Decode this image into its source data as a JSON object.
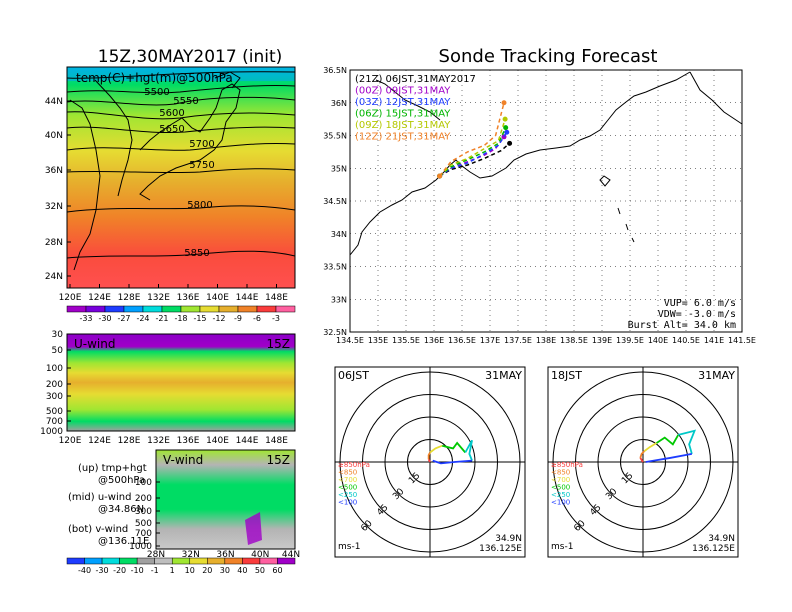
{
  "left_title": "15Z,30MAY2017 (init)",
  "right_title": "Sonde Tracking Forecast",
  "map500": {
    "label": "temp(C)+hgt(m)@500hPa",
    "lon_ticks": [
      "120E",
      "124E",
      "128E",
      "132E",
      "136E",
      "140E",
      "144E",
      "148E"
    ],
    "lat_ticks": [
      "44N",
      "40N",
      "36N",
      "32N",
      "28N",
      "24N"
    ],
    "contours": [
      "5500",
      "5550",
      "5600",
      "5650",
      "5700",
      "5750",
      "5800",
      "5850"
    ],
    "colorbar": {
      "labels": [
        "-33",
        "-30",
        "-27",
        "-24",
        "-21",
        "-18",
        "-15",
        "-12",
        "-9",
        "-6",
        "-3"
      ],
      "colors": [
        "#a000c8",
        "#7800dc",
        "#1e3cff",
        "#00a0ff",
        "#00dcdc",
        "#00dc64",
        "#a0e632",
        "#e6dc32",
        "#e6af2d",
        "#f08228",
        "#fa3c3c",
        "#ff60a0"
      ]
    }
  },
  "uwind": {
    "label": "U-wind",
    "time": "15Z",
    "p_ticks": [
      "30",
      "50",
      "100",
      "200",
      "300",
      "500",
      "700",
      "1000"
    ],
    "lon_ticks": [
      "120E",
      "124E",
      "128E",
      "132E",
      "136E",
      "140E",
      "144E",
      "148E"
    ]
  },
  "vwind": {
    "label": "V-wind",
    "time": "15Z",
    "p_ticks": [
      "100",
      "200",
      "300",
      "500",
      "700",
      "1000"
    ],
    "lat_ticks": [
      "28N",
      "32N",
      "36N",
      "40N",
      "44N"
    ],
    "colorbar": {
      "labels": [
        "-40",
        "-30",
        "-20",
        "-10",
        "-1",
        "1",
        "10",
        "20",
        "30",
        "40",
        "50",
        "60"
      ],
      "colors": [
        "#1e3cff",
        "#00a0ff",
        "#00dcdc",
        "#00dc64",
        "#a0a0a0",
        "#bebebe",
        "#a0e632",
        "#e6dc32",
        "#e6af2d",
        "#f08228",
        "#fa3c3c",
        "#ff60a0",
        "#a000c8"
      ]
    }
  },
  "notes": [
    {
      "a": "(up) tmp+hgt",
      "b": "@500hPa"
    },
    {
      "a": "(mid) u-wind",
      "b": "@34.86N"
    },
    {
      "a": "(bot) v-wind",
      "b": "@136.11E"
    }
  ],
  "track": {
    "legend": [
      {
        "text": "(21Z)  06JST,31MAY2017",
        "color": "#000000"
      },
      {
        "text": "(00Z)  09JST,31MAY",
        "color": "#a000c8"
      },
      {
        "text": "(03Z)  12JST,31MAY",
        "color": "#1e3cff"
      },
      {
        "text": "(06Z)  15JST,31MAY",
        "color": "#00b400"
      },
      {
        "text": "(09Z)  18JST,31MAY",
        "color": "#b4c800"
      },
      {
        "text": "(12Z)  21JST,31MAY",
        "color": "#f08228"
      }
    ],
    "lon_ticks": [
      "134.5E",
      "135E",
      "135.5E",
      "136E",
      "136.5E",
      "137E",
      "137.5E",
      "138E",
      "138.5E",
      "139E",
      "139.5E",
      "140E",
      "140.5E",
      "141E",
      "141.5E"
    ],
    "lat_ticks": [
      "36.5N",
      "36N",
      "35.5N",
      "35N",
      "34.5N",
      "34N",
      "33.5N",
      "33N",
      "32.5N"
    ],
    "vup": "VUP=  6.0  m/s",
    "vdw": "VDW=  -3.0  m/s",
    "burst": "Burst Alt=  34.0  km"
  },
  "hodo_left": {
    "time": "06JST",
    "date": "31MAY",
    "lat": "34.9N",
    "lon": "136.125E",
    "unit": "ms-1",
    "rings": [
      "15",
      "30",
      "45",
      "60"
    ],
    "levels": [
      {
        "t": "≥850hPa",
        "c": "#fa3c3c"
      },
      {
        "t": "<850",
        "c": "#f08228"
      },
      {
        "t": "<700",
        "c": "#e6dc32"
      },
      {
        "t": "<500",
        "c": "#00c800"
      },
      {
        "t": "<250",
        "c": "#00c8c8"
      },
      {
        "t": "<100",
        "c": "#1e3cff"
      }
    ]
  },
  "hodo_right": {
    "time": "18JST",
    "date": "31MAY",
    "lat": "34.9N",
    "lon": "136.125E",
    "unit": "ms-1",
    "rings": [
      "15",
      "30",
      "45",
      "60"
    ],
    "levels": [
      {
        "t": "≥850hPa",
        "c": "#fa3c3c"
      },
      {
        "t": "<850",
        "c": "#f08228"
      },
      {
        "t": "<700",
        "c": "#e6dc32"
      },
      {
        "t": "<500",
        "c": "#00c800"
      },
      {
        "t": "<250",
        "c": "#00c8c8"
      },
      {
        "t": "<100",
        "c": "#1e3cff"
      }
    ]
  },
  "chart_data": [
    {
      "type": "heatmap",
      "title": "15Z,30MAY2017 (init)",
      "subtitle": "temp(C)+hgt(m)@500hPa",
      "xlabel": "",
      "ylabel": "",
      "xlim": [
        120,
        150
      ],
      "ylim": [
        22,
        48
      ],
      "contour_levels_m": [
        5500,
        5550,
        5600,
        5650,
        5700,
        5750,
        5800,
        5850
      ],
      "colorbar_levels_C": [
        -33,
        -30,
        -27,
        -24,
        -21,
        -18,
        -15,
        -12,
        -9,
        -6,
        -3
      ]
    },
    {
      "type": "heatmap",
      "title": "U-wind",
      "subtitle": "15Z",
      "xlim": [
        120,
        150
      ],
      "y_levels_hPa": [
        30,
        50,
        100,
        200,
        300,
        500,
        700,
        1000
      ]
    },
    {
      "type": "heatmap",
      "title": "V-wind",
      "subtitle": "15Z",
      "xlim": [
        28,
        44
      ],
      "y_levels_hPa": [
        100,
        200,
        300,
        500,
        700,
        1000
      ],
      "colorbar_levels_ms": [
        -40,
        -30,
        -20,
        -10,
        -1,
        1,
        10,
        20,
        30,
        40,
        50,
        60
      ]
    },
    {
      "type": "line",
      "title": "Sonde Tracking Forecast",
      "xlim": [
        134.5,
        141.5
      ],
      "ylim": [
        32.5,
        36.5
      ],
      "series": [
        {
          "name": "(21Z) 06JST,31MAY2017",
          "color": "#000000",
          "x": [
            136.1,
            136.3,
            136.6,
            136.9,
            137.2,
            137.35
          ],
          "y": [
            34.88,
            34.98,
            35.05,
            35.15,
            35.27,
            35.38
          ]
        },
        {
          "name": "(00Z) 09JST,31MAY",
          "color": "#a000c8",
          "x": [
            136.1,
            136.3,
            136.6,
            136.9,
            137.1,
            137.25
          ],
          "y": [
            34.88,
            35.0,
            35.1,
            35.2,
            35.3,
            35.48
          ]
        },
        {
          "name": "(03Z) 12JST,31MAY",
          "color": "#1e3cff",
          "x": [
            136.1,
            136.3,
            136.6,
            136.9,
            137.15,
            137.3
          ],
          "y": [
            34.88,
            35.0,
            35.08,
            35.22,
            35.35,
            35.55
          ]
        },
        {
          "name": "(06Z) 15JST,31MAY",
          "color": "#00b400",
          "x": [
            136.1,
            136.3,
            136.6,
            136.9,
            137.15,
            137.28
          ],
          "y": [
            34.88,
            35.02,
            35.13,
            35.25,
            35.38,
            35.62
          ]
        },
        {
          "name": "(09Z) 18JST,31MAY",
          "color": "#b4c800",
          "x": [
            136.1,
            136.3,
            136.6,
            136.9,
            137.15,
            137.27
          ],
          "y": [
            34.88,
            35.05,
            35.15,
            35.3,
            35.42,
            35.75
          ]
        },
        {
          "name": "(12Z) 21JST,31MAY",
          "color": "#f08228",
          "x": [
            136.1,
            136.3,
            136.6,
            136.9,
            137.1,
            137.25
          ],
          "y": [
            34.88,
            35.1,
            35.25,
            35.35,
            35.5,
            36.0
          ]
        }
      ]
    },
    {
      "type": "line",
      "title": "06JST 31MAY",
      "xlim": [
        -70,
        70
      ],
      "ylim": [
        -70,
        70
      ],
      "series": [
        {
          "name": "≥850hPa",
          "color": "#fa3c3c",
          "x": [
            0,
            -1
          ],
          "y": [
            0,
            2
          ]
        },
        {
          "name": "<850",
          "color": "#f08228",
          "x": [
            -1,
            -1,
            0
          ],
          "y": [
            2,
            5,
            7
          ]
        },
        {
          "name": "<700",
          "color": "#e6dc32",
          "x": [
            0,
            4,
            9
          ],
          "y": [
            7,
            10,
            12
          ]
        },
        {
          "name": "<500",
          "color": "#00c800",
          "x": [
            9,
            17,
            20,
            26
          ],
          "y": [
            12,
            10,
            14,
            7
          ]
        },
        {
          "name": "<250",
          "color": "#00c8c8",
          "x": [
            26,
            31,
            29,
            31
          ],
          "y": [
            7,
            16,
            6,
            1
          ]
        },
        {
          "name": "<100",
          "color": "#1e3cff",
          "x": [
            31,
            18,
            8,
            2
          ],
          "y": [
            1,
            0,
            -1,
            1
          ]
        }
      ]
    },
    {
      "type": "line",
      "title": "18JST 31MAY",
      "xlim": [
        -70,
        70
      ],
      "ylim": [
        -70,
        70
      ],
      "series": [
        {
          "name": "≥850hPa",
          "color": "#fa3c3c",
          "x": [
            0,
            -2
          ],
          "y": [
            0,
            3
          ]
        },
        {
          "name": "<850",
          "color": "#f08228",
          "x": [
            -2,
            -1,
            1
          ],
          "y": [
            3,
            6,
            8
          ]
        },
        {
          "name": "<700",
          "color": "#e6dc32",
          "x": [
            1,
            5,
            10
          ],
          "y": [
            8,
            11,
            14
          ]
        },
        {
          "name": "<500",
          "color": "#00c800",
          "x": [
            10,
            16,
            22,
            26
          ],
          "y": [
            14,
            18,
            13,
            20
          ]
        },
        {
          "name": "<250",
          "color": "#00c8c8",
          "x": [
            26,
            38,
            34,
            36
          ],
          "y": [
            20,
            23,
            13,
            6
          ]
        },
        {
          "name": "<100",
          "color": "#1e3cff",
          "x": [
            36,
            20,
            8,
            2
          ],
          "y": [
            6,
            3,
            1,
            0
          ]
        }
      ]
    }
  ]
}
